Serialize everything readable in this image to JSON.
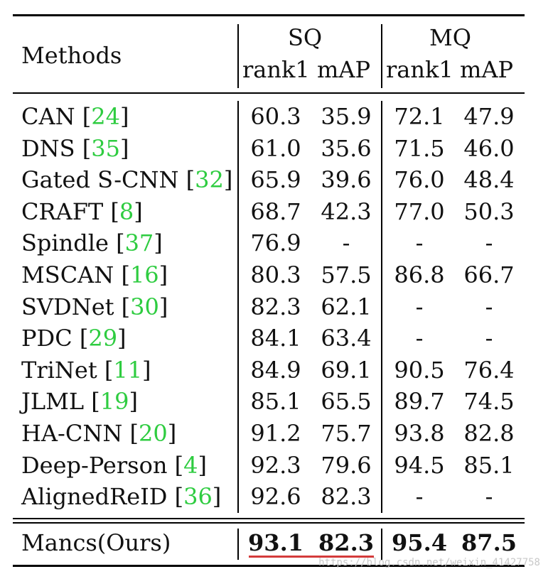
{
  "header": {
    "methods_label": "Methods",
    "groups": [
      {
        "name": "SQ",
        "cols": [
          "rank1",
          "mAP"
        ]
      },
      {
        "name": "MQ",
        "cols": [
          "rank1",
          "mAP"
        ]
      }
    ]
  },
  "rows": [
    {
      "name": "CAN",
      "ref": "24",
      "vals": [
        "60.3",
        "35.9",
        "72.1",
        "47.9"
      ]
    },
    {
      "name": "DNS",
      "ref": "35",
      "vals": [
        "61.0",
        "35.6",
        "71.5",
        "46.0"
      ]
    },
    {
      "name": "Gated S-CNN",
      "ref": "32",
      "vals": [
        "65.9",
        "39.6",
        "76.0",
        "48.4"
      ]
    },
    {
      "name": "CRAFT",
      "ref": "8",
      "vals": [
        "68.7",
        "42.3",
        "77.0",
        "50.3"
      ]
    },
    {
      "name": "Spindle",
      "ref": "37",
      "vals": [
        "76.9",
        "-",
        "-",
        "-"
      ]
    },
    {
      "name": "MSCAN",
      "ref": "16",
      "vals": [
        "80.3",
        "57.5",
        "86.8",
        "66.7"
      ]
    },
    {
      "name": "SVDNet",
      "ref": "30",
      "vals": [
        "82.3",
        "62.1",
        "-",
        "-"
      ]
    },
    {
      "name": "PDC",
      "ref": "29",
      "vals": [
        "84.1",
        "63.4",
        "-",
        "-"
      ]
    },
    {
      "name": "TriNet",
      "ref": "11",
      "vals": [
        "84.9",
        "69.1",
        "90.5",
        "76.4"
      ]
    },
    {
      "name": "JLML",
      "ref": "19",
      "vals": [
        "85.1",
        "65.5",
        "89.7",
        "74.5"
      ]
    },
    {
      "name": "HA-CNN",
      "ref": "20",
      "vals": [
        "91.2",
        "75.7",
        "93.8",
        "82.8"
      ]
    },
    {
      "name": "Deep-Person",
      "ref": "4",
      "vals": [
        "92.3",
        "79.6",
        "94.5",
        "85.1"
      ]
    },
    {
      "name": "AlignedReID",
      "ref": "36",
      "vals": [
        "92.6",
        "82.3",
        "-",
        "-"
      ]
    }
  ],
  "ours": {
    "name": "Mancs(Ours)",
    "vals": [
      "93.1",
      "82.3",
      "95.4",
      "87.5"
    ]
  },
  "watermark": "https://blog.csdn.net/weixin_41427758",
  "colors": {
    "ref": "#2ecc40",
    "highlight_underline": "#d43b3b"
  }
}
